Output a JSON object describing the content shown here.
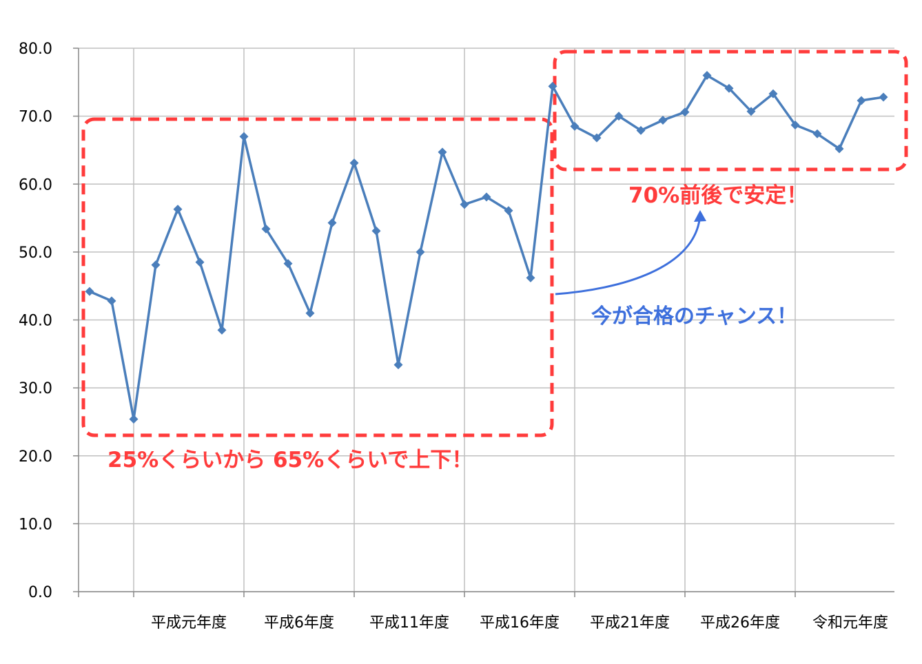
{
  "chart_data": {
    "type": "line",
    "title": "",
    "xlabel": "",
    "ylabel": "",
    "ylim": [
      0,
      80
    ],
    "y_ticks": [
      "0.0",
      "10.0",
      "20.0",
      "30.0",
      "40.0",
      "50.0",
      "60.0",
      "70.0",
      "80.0"
    ],
    "x_tick_labels": [
      "平成元年度",
      "平成6年度",
      "平成11年度",
      "平成16年度",
      "平成21年度",
      "平成26年度",
      "令和元年度"
    ],
    "grid": true,
    "legend": "none",
    "series": [
      {
        "color": "#4a7ebb",
        "marker": "diamond",
        "values": [
          44.2,
          42.8,
          25.4,
          48.1,
          56.3,
          48.5,
          38.5,
          67.0,
          53.4,
          48.3,
          41.0,
          54.3,
          63.1,
          53.1,
          33.4,
          50.0,
          64.7,
          57.0,
          58.1,
          56.1,
          46.2,
          74.4,
          68.5,
          66.8,
          70.0,
          67.9,
          69.4,
          70.6,
          76.0,
          74.1,
          70.7,
          73.3,
          68.7,
          67.4,
          65.2,
          72.3,
          72.8
        ]
      }
    ],
    "annotations": {
      "range_note": "25%くらいから 65%くらいで上下！",
      "stable_note": "70%前後で安定！",
      "chance_note": "今が合格のチャンス！"
    },
    "colors": {
      "line": "#4a7ebb",
      "highlight_box": "#ff3b3b",
      "arrow": "#3d6fdc",
      "grid": "#bfbfbf"
    }
  }
}
